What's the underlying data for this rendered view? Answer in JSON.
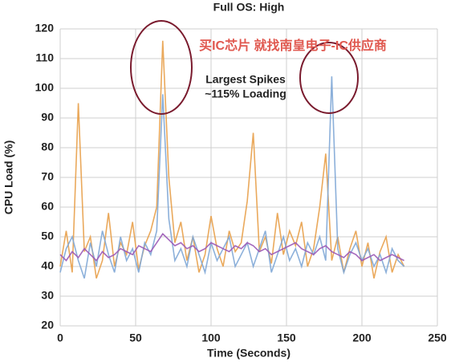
{
  "chart_data": {
    "type": "line",
    "title": "Full OS: High",
    "xlabel": "Time (Seconds)",
    "ylabel": "CPU Load (%)",
    "annotations": [
      "Largest Spikes",
      "~115% Loading"
    ],
    "watermark": "买IC芯片 就找南皇电子-IC供应商",
    "xlim": [
      0,
      250
    ],
    "ylim": [
      20,
      120
    ],
    "xticks": [
      0,
      50,
      100,
      150,
      200,
      250
    ],
    "yticks": [
      20,
      30,
      40,
      50,
      60,
      70,
      80,
      90,
      100,
      110,
      120
    ],
    "grid": true,
    "x": [
      0,
      4,
      8,
      12,
      16,
      20,
      24,
      28,
      32,
      36,
      40,
      44,
      48,
      52,
      56,
      60,
      64,
      68,
      72,
      76,
      80,
      84,
      88,
      92,
      96,
      100,
      104,
      108,
      112,
      116,
      120,
      124,
      128,
      132,
      136,
      140,
      144,
      148,
      152,
      156,
      160,
      164,
      168,
      172,
      176,
      180,
      184,
      188,
      192,
      196,
      200,
      204,
      208,
      212,
      216,
      220,
      224,
      228
    ],
    "series": [
      {
        "color": "#e8a04a",
        "values": [
          40,
          52,
          38,
          95,
          45,
          50,
          36,
          42,
          58,
          40,
          48,
          44,
          55,
          39,
          47,
          52,
          60,
          116,
          70,
          48,
          55,
          42,
          50,
          38,
          44,
          57,
          46,
          40,
          52,
          45,
          48,
          62,
          85,
          45,
          50,
          41,
          58,
          44,
          52,
          47,
          55,
          40,
          46,
          60,
          78,
          42,
          50,
          38,
          46,
          52,
          40,
          48,
          36,
          45,
          50,
          38,
          44,
          40
        ]
      },
      {
        "color": "#7fa7d6",
        "values": [
          38,
          46,
          50,
          42,
          36,
          48,
          40,
          52,
          44,
          38,
          50,
          42,
          46,
          38,
          48,
          44,
          52,
          98,
          56,
          42,
          46,
          40,
          50,
          44,
          38,
          48,
          42,
          46,
          50,
          40,
          44,
          48,
          40,
          46,
          52,
          38,
          44,
          50,
          42,
          46,
          40,
          48,
          44,
          50,
          42,
          104,
          46,
          38,
          44,
          48,
          42,
          46,
          40,
          44,
          38,
          46,
          42,
          40
        ]
      },
      {
        "color": "#9b59b6",
        "values": [
          44,
          42,
          45,
          43,
          46,
          44,
          42,
          45,
          43,
          44,
          46,
          45,
          44,
          47,
          46,
          45,
          48,
          51,
          49,
          47,
          48,
          46,
          47,
          45,
          46,
          48,
          47,
          46,
          45,
          47,
          46,
          48,
          47,
          45,
          46,
          44,
          45,
          46,
          47,
          48,
          46,
          45,
          44,
          46,
          47,
          45,
          44,
          43,
          45,
          44,
          42,
          43,
          44,
          42,
          43,
          44,
          43,
          42
        ]
      }
    ]
  }
}
